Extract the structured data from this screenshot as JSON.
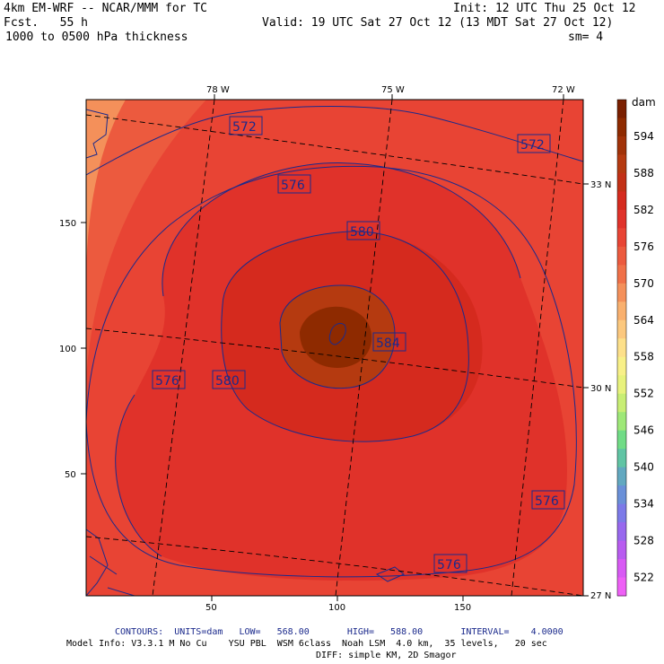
{
  "header": {
    "model_line": "4km EM-WRF -- NCAR/MMM for TC",
    "init": "Init: 12 UTC Thu 25 Oct 12",
    "fcst": "Fcst.   55 h",
    "valid": "Valid: 19 UTC Sat 27 Oct 12 (13 MDT Sat 27 Oct 12)",
    "field": "1000 to 0500 hPa thickness",
    "smoothing": "sm= 4"
  },
  "map": {
    "lon_labels": [
      "78 W",
      "75 W",
      "72 W"
    ],
    "lat_labels": [
      "33 N",
      "30 N",
      "27 N"
    ],
    "y_ticks": [
      "150",
      "100",
      "50"
    ],
    "x_ticks": [
      "50",
      "100",
      "150"
    ],
    "contour_labels": [
      {
        "text": "572",
        "level": 572
      },
      {
        "text": "572",
        "level": 572
      },
      {
        "text": "576",
        "level": 576
      },
      {
        "text": "580",
        "level": 580
      },
      {
        "text": "584",
        "level": 584
      },
      {
        "text": "576",
        "level": 576
      },
      {
        "text": "580",
        "level": 580
      },
      {
        "text": "576",
        "level": 576
      },
      {
        "text": "576",
        "level": 576
      }
    ],
    "contour_color": "#1b2a8c"
  },
  "colorbar": {
    "units": "dam",
    "labels": [
      "594",
      "588",
      "582",
      "576",
      "570",
      "564",
      "558",
      "552",
      "546",
      "540",
      "534",
      "528",
      "522"
    ],
    "colors": [
      "#7a1f00",
      "#8e2a00",
      "#a13208",
      "#b53a10",
      "#c23016",
      "#d52a1e",
      "#e0322a",
      "#e84434",
      "#ec5a3e",
      "#f07048",
      "#f4905a",
      "#f9b06e",
      "#fcc87e",
      "#fde08a",
      "#f8f088",
      "#e8f27c",
      "#c8ee74",
      "#9ee878",
      "#70dc86",
      "#60c4a4",
      "#62a8c0",
      "#6a90d8",
      "#7c7ae8",
      "#9868ee",
      "#b85cf0",
      "#d85af4",
      "#ee60f6"
    ]
  },
  "footer": {
    "contours": "CONTOURS:  UNITS=dam   LOW=   568.00       HIGH=   588.00       INTERVAL=    4.0000",
    "model_info": "Model Info: V3.3.1 M No Cu    YSU PBL  WSM 6class  Noah LSM  4.0 km,  35 levels,   20 sec",
    "diff": "DIFF: simple KM, 2D Smagor"
  }
}
